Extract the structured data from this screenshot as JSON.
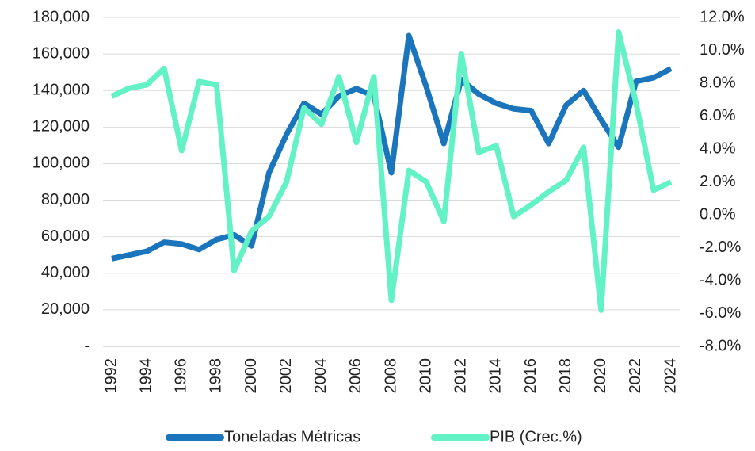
{
  "chart_data": {
    "type": "line",
    "x": [
      1992,
      1993,
      1994,
      1995,
      1996,
      1997,
      1998,
      1999,
      2000,
      2001,
      2002,
      2003,
      2004,
      2005,
      2006,
      2007,
      2008,
      2009,
      2010,
      2011,
      2012,
      2013,
      2014,
      2015,
      2016,
      2017,
      2018,
      2019,
      2020,
      2021,
      2022,
      2023,
      2024
    ],
    "xlim": [
      1991.5,
      2024.5
    ],
    "xticks": [
      1992,
      1994,
      1996,
      1998,
      2000,
      2002,
      2004,
      2006,
      2008,
      2010,
      2012,
      2014,
      2016,
      2018,
      2020,
      2022,
      2024
    ],
    "ylim": [
      0,
      180000
    ],
    "yticks": [
      {
        "value": 0,
        "label": "-"
      },
      {
        "value": 20000,
        "label": "20,000"
      },
      {
        "value": 40000,
        "label": "40,000"
      },
      {
        "value": 60000,
        "label": "60,000"
      },
      {
        "value": 80000,
        "label": "80,000"
      },
      {
        "value": 100000,
        "label": "100,000"
      },
      {
        "value": 120000,
        "label": "120,000"
      },
      {
        "value": 140000,
        "label": "140,000"
      },
      {
        "value": 160000,
        "label": "160,000"
      },
      {
        "value": 180000,
        "label": "180,000"
      }
    ],
    "y2lim": [
      -8,
      12
    ],
    "y2ticks": [
      {
        "value": -8,
        "label": "-8.0%"
      },
      {
        "value": -6,
        "label": "-6.0%"
      },
      {
        "value": -4,
        "label": "-4.0%"
      },
      {
        "value": -2,
        "label": "-2.0%"
      },
      {
        "value": 0,
        "label": "0.0%"
      },
      {
        "value": 2,
        "label": "2.0%"
      },
      {
        "value": 4,
        "label": "4.0%"
      },
      {
        "value": 6,
        "label": "6.0%"
      },
      {
        "value": 8,
        "label": "8.0%"
      },
      {
        "value": 10,
        "label": "10.0%"
      },
      {
        "value": 12,
        "label": "12.0%"
      }
    ],
    "grid": true,
    "legend": "bottom",
    "series": [
      {
        "name": "Toneladas Métricas",
        "color": "#1b75bd",
        "values": [
          48000,
          50000,
          52000,
          57000,
          56000,
          53000,
          58500,
          61000,
          55000,
          95000,
          116000,
          133000,
          127000,
          137000,
          141000,
          137000,
          95000,
          170000,
          142000,
          111000,
          146000,
          138000,
          133000,
          130000,
          129000,
          111000,
          132000,
          140000,
          124000,
          109000,
          145000,
          147000,
          152000
        ]
      },
      {
        "name": "PIB (Crec.%)",
        "color": "#63f2c6",
        "axis": "y2",
        "values": [
          7.2,
          7.7,
          7.9,
          8.9,
          3.9,
          8.1,
          7.9,
          -3.4,
          -1.0,
          -0.1,
          2.0,
          6.5,
          5.5,
          8.4,
          4.4,
          8.4,
          -5.2,
          2.7,
          2.0,
          -0.4,
          9.8,
          3.8,
          4.2,
          -0.1,
          0.6,
          1.4,
          2.1,
          4.1,
          -5.8,
          11.1,
          6.8,
          1.5,
          2.0
        ]
      }
    ]
  }
}
